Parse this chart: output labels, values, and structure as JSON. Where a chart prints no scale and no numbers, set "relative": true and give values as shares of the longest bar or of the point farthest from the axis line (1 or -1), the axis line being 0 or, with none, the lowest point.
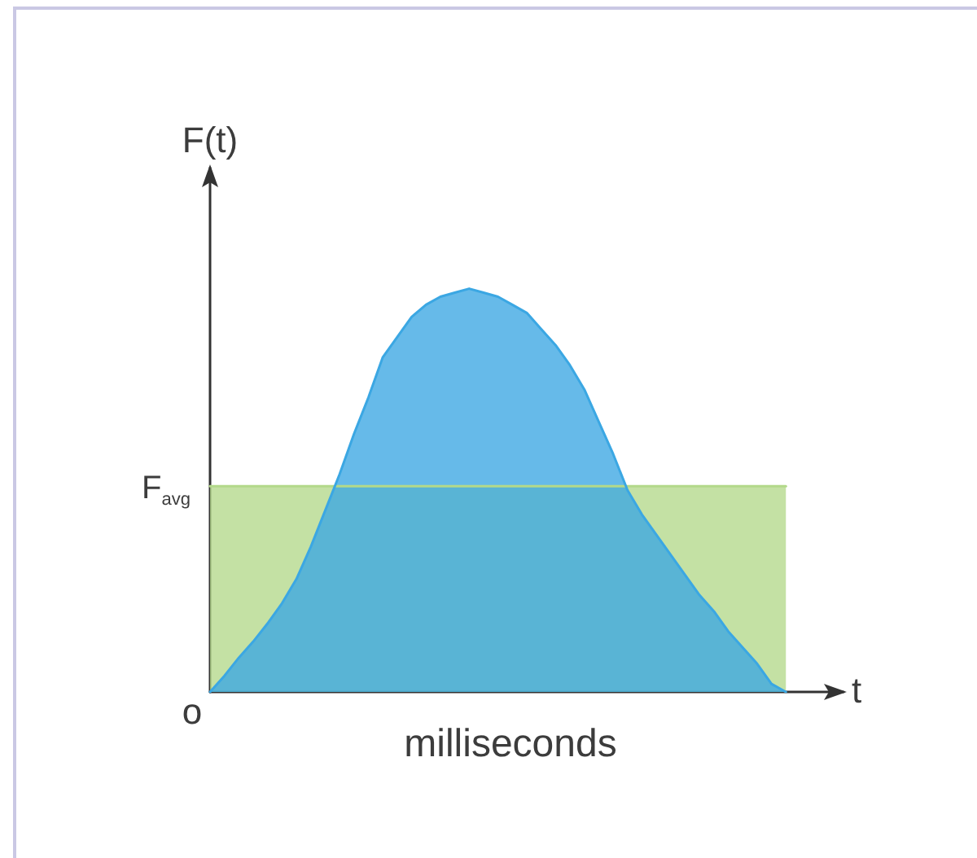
{
  "chart_data": {
    "type": "area",
    "relative": true,
    "ylabel": "F(t)",
    "xlabel": "milliseconds",
    "annotations": [
      "o",
      "t"
    ],
    "marker": "none",
    "categories": [
      null,
      null,
      null,
      null,
      null,
      null,
      null,
      null,
      null,
      null,
      null,
      null,
      null,
      null,
      null,
      null,
      null,
      null,
      null,
      null,
      null,
      null,
      null,
      null,
      null,
      null,
      null,
      null,
      null,
      null,
      null,
      null,
      null,
      null,
      null,
      null,
      null,
      null,
      null,
      null,
      null,
      null,
      null,
      null,
      null
    ],
    "series": [
      {
        "name": "F$_{avg}$",
        "color": "#b3d98a",
        "values": [
          0.51,
          0.51,
          0.51,
          0.51,
          0.51,
          0.51,
          0.51,
          0.51,
          0.51,
          0.51,
          0.51,
          0.51,
          0.51,
          0.51,
          0.51,
          0.51,
          0.51,
          0.51,
          0.51,
          0.51,
          0.51,
          0.51,
          0.51,
          0.51,
          0.51,
          0.51,
          0.51,
          0.51,
          0.51,
          0.51,
          0.51,
          0.51,
          0.51,
          0.51,
          0.51,
          0.51,
          0.51,
          0.51,
          0.51,
          0.51,
          0.51,
          null,
          null,
          null,
          null
        ]
      },
      {
        "color": "#3ba7e3",
        "values": [
          0,
          0.04,
          0.085,
          0.125,
          0.17,
          0.22,
          0.28,
          0.36,
          0.45,
          0.54,
          0.64,
          0.73,
          0.83,
          0.88,
          0.93,
          0.96,
          0.98,
          0.99,
          1,
          0.99,
          0.98,
          0.96,
          0.94,
          0.9,
          0.86,
          0.81,
          0.75,
          0.67,
          0.59,
          0.5,
          0.44,
          0.39,
          0.34,
          0.29,
          0.24,
          0.2,
          0.15,
          0.11,
          0.07,
          0.02,
          0,
          null,
          null,
          null,
          null
        ]
      }
    ]
  }
}
